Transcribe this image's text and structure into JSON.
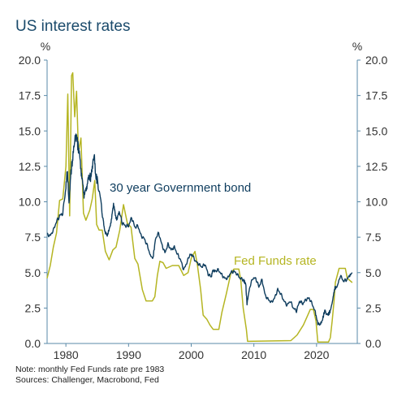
{
  "chart_data": {
    "type": "line",
    "title": "US interest rates",
    "y_unit_left": "%",
    "y_unit_right": "%",
    "ylim": [
      0,
      20
    ],
    "yticks": [
      "0.0",
      "2.5",
      "5.0",
      "7.5",
      "10.0",
      "12.5",
      "15.0",
      "17.5",
      "20.0"
    ],
    "xlim": [
      1977,
      2026.5
    ],
    "xticks": [
      "1980",
      "1990",
      "2000",
      "2010",
      "2020"
    ],
    "grid": false,
    "colors": {
      "bond": "#0f3d5e",
      "fed": "#b5b522",
      "axis": "#5a8aa8",
      "title": "#1a4a6b"
    },
    "series": [
      {
        "name": "30 year Government bond",
        "key": "bond",
        "x": [
          1977.0,
          1977.5,
          1978.0,
          1978.5,
          1979.0,
          1979.5,
          1980.0,
          1980.2,
          1980.5,
          1980.8,
          1981.0,
          1981.3,
          1981.5,
          1981.8,
          1982.0,
          1982.3,
          1982.6,
          1982.9,
          1983.2,
          1983.5,
          1983.8,
          1984.0,
          1984.3,
          1984.5,
          1984.8,
          1985.0,
          1985.5,
          1986.0,
          1986.3,
          1986.6,
          1987.0,
          1987.3,
          1987.6,
          1987.9,
          1988.2,
          1988.5,
          1989.0,
          1989.5,
          1990.0,
          1990.5,
          1991.0,
          1991.5,
          1992.0,
          1992.5,
          1993.0,
          1993.5,
          1993.9,
          1994.3,
          1994.8,
          1995.3,
          1995.8,
          1996.3,
          1996.8,
          1997.3,
          1997.8,
          1998.3,
          1998.8,
          1999.3,
          1999.8,
          2000.2,
          2000.7,
          2001.2,
          2001.7,
          2002.2,
          2002.7,
          2003.2,
          2003.5,
          2003.8,
          2004.3,
          2004.8,
          2005.3,
          2005.8,
          2006.3,
          2006.8,
          2007.3,
          2007.8,
          2008.3,
          2008.7,
          2008.9,
          2009.3,
          2009.8,
          2010.3,
          2010.8,
          2011.3,
          2011.8,
          2012.3,
          2012.8,
          2013.3,
          2013.8,
          2014.3,
          2014.8,
          2015.3,
          2015.8,
          2016.3,
          2016.8,
          2017.3,
          2017.8,
          2018.3,
          2018.8,
          2019.3,
          2019.8,
          2020.2,
          2020.5,
          2020.9,
          2021.3,
          2021.8,
          2022.2,
          2022.6,
          2022.9,
          2023.3,
          2023.8,
          2024.3,
          2024.8,
          2025.3,
          2025.7
        ],
        "values": [
          7.7,
          7.6,
          8.0,
          8.6,
          9.0,
          9.2,
          11.0,
          12.2,
          10.0,
          12.0,
          12.8,
          13.8,
          14.7,
          14.2,
          13.8,
          12.8,
          11.5,
          10.5,
          10.8,
          11.5,
          11.8,
          11.6,
          12.8,
          13.2,
          11.8,
          11.5,
          10.3,
          8.5,
          7.8,
          7.6,
          8.2,
          8.8,
          9.9,
          9.0,
          8.8,
          9.3,
          8.5,
          8.3,
          8.3,
          8.9,
          8.2,
          8.3,
          7.6,
          7.4,
          6.9,
          6.2,
          6.0,
          7.4,
          7.8,
          7.0,
          6.4,
          7.0,
          6.6,
          6.8,
          6.3,
          5.9,
          5.2,
          5.7,
          6.3,
          6.2,
          5.8,
          5.6,
          5.4,
          5.6,
          4.9,
          4.7,
          5.2,
          5.1,
          5.2,
          4.9,
          4.6,
          4.6,
          5.0,
          5.1,
          4.9,
          4.6,
          4.5,
          4.2,
          2.8,
          3.9,
          4.6,
          4.6,
          4.0,
          4.5,
          3.4,
          3.1,
          2.9,
          3.2,
          3.8,
          3.5,
          3.0,
          2.7,
          3.0,
          2.5,
          2.3,
          3.0,
          2.8,
          3.1,
          3.2,
          2.8,
          2.2,
          1.4,
          1.3,
          1.6,
          2.3,
          2.0,
          2.3,
          3.1,
          3.9,
          4.0,
          4.8,
          4.4,
          4.5,
          4.8,
          5.0
        ]
      },
      {
        "name": "Fed Funds rate",
        "key": "fed",
        "x": [
          1977.0,
          1977.5,
          1978.0,
          1978.5,
          1979.0,
          1979.5,
          1980.0,
          1980.3,
          1980.6,
          1980.9,
          1981.1,
          1981.4,
          1981.7,
          1982.0,
          1982.4,
          1982.8,
          1983.2,
          1983.8,
          1984.2,
          1984.6,
          1984.9,
          1985.3,
          1985.8,
          1986.3,
          1986.9,
          1987.5,
          1988.0,
          1988.6,
          1989.2,
          1989.8,
          1990.4,
          1991.0,
          1991.5,
          1992.2,
          1992.8,
          1993.8,
          1994.2,
          1994.6,
          1995.0,
          1995.5,
          1996.0,
          1997.0,
          1998.0,
          1998.8,
          1999.5,
          2000.0,
          2000.6,
          2001.0,
          2001.5,
          2001.9,
          2002.5,
          2003.0,
          2003.5,
          2004.4,
          2004.9,
          2005.6,
          2006.3,
          2006.8,
          2007.6,
          2007.9,
          2008.3,
          2008.8,
          2009.0,
          2015.9,
          2016.9,
          2017.9,
          2018.5,
          2019.0,
          2019.5,
          2019.9,
          2020.2,
          2021.9,
          2022.2,
          2022.5,
          2022.8,
          2023.0,
          2023.6,
          2024.6,
          2024.9,
          2025.7
        ],
        "values": [
          4.6,
          5.5,
          6.8,
          7.8,
          10.1,
          10.2,
          12.5,
          17.6,
          9.0,
          18.9,
          19.1,
          16.0,
          17.8,
          13.5,
          14.5,
          9.2,
          8.7,
          9.4,
          10.2,
          11.5,
          8.4,
          8.0,
          8.0,
          6.5,
          5.9,
          6.6,
          6.8,
          8.0,
          9.8,
          8.5,
          8.2,
          6.0,
          5.6,
          3.8,
          3.0,
          3.0,
          3.3,
          4.8,
          5.8,
          5.7,
          5.3,
          5.5,
          5.5,
          4.8,
          5.0,
          6.0,
          6.5,
          5.5,
          3.8,
          2.0,
          1.7,
          1.3,
          1.0,
          1.0,
          2.2,
          3.5,
          4.9,
          5.25,
          5.25,
          4.5,
          2.5,
          1.0,
          0.15,
          0.2,
          0.6,
          1.3,
          1.9,
          2.4,
          2.4,
          1.6,
          0.1,
          0.1,
          0.4,
          1.6,
          3.0,
          4.3,
          5.3,
          5.3,
          4.6,
          4.3
        ]
      }
    ],
    "annotations": [
      "30 year Government bond",
      "Fed Funds rate"
    ]
  },
  "notes": {
    "line1": "Note: monthly Fed Funds rate pre 1983",
    "line2": "Sources: Challenger, Macrobond, Fed"
  }
}
